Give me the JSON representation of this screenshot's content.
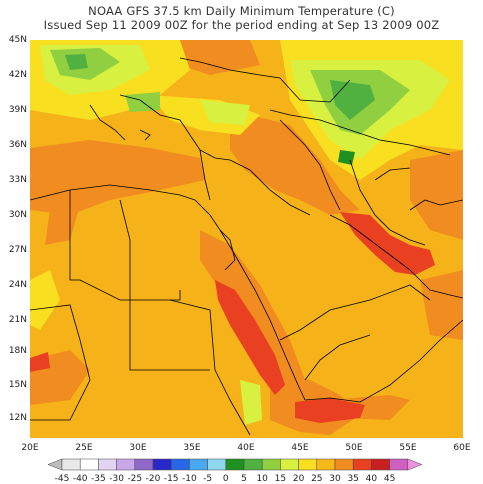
{
  "title_line1": "NOAA GFS 37.5 km Daily Minimum Temperature (C)",
  "title_line2": "Issued Sep 11 2009 00Z for the period ending at Sep 13 2009 00Z",
  "lat_labels": [
    "45N",
    "42N",
    "39N",
    "36N",
    "33N",
    "30N",
    "27N",
    "24N",
    "21N",
    "18N",
    "15N",
    "12N"
  ],
  "lon_labels": [
    "20E",
    "25E",
    "30E",
    "35E",
    "40E",
    "45E",
    "50E",
    "55E",
    "60E"
  ],
  "legend": {
    "labels": [
      "-45",
      "-40",
      "-35",
      "-30",
      "-25",
      "-20",
      "-15",
      "-10",
      "-5",
      "0",
      "5",
      "10",
      "15",
      "20",
      "25",
      "30",
      "35",
      "40",
      "45"
    ],
    "colors": [
      "#bdbdbd",
      "#e8e8e8",
      "#ffffff",
      "#e4d4f4",
      "#c8a8e8",
      "#9068c8",
      "#2828c8",
      "#2868e8",
      "#48a8f0",
      "#90d8f0",
      "#209020",
      "#50b040",
      "#90d040",
      "#d8f040",
      "#f8e020",
      "#f8b818",
      "#f08c20",
      "#e84020",
      "#c82020",
      "#d060c0",
      "#f090e0"
    ]
  },
  "map_colors": {
    "base": "#f6b219",
    "warm": "#f08c20",
    "hot": "#e84020",
    "mild": "#f8e020",
    "cool": "#d8f040",
    "cooler": "#90d040",
    "cold": "#50b040",
    "coldest": "#209020"
  }
}
